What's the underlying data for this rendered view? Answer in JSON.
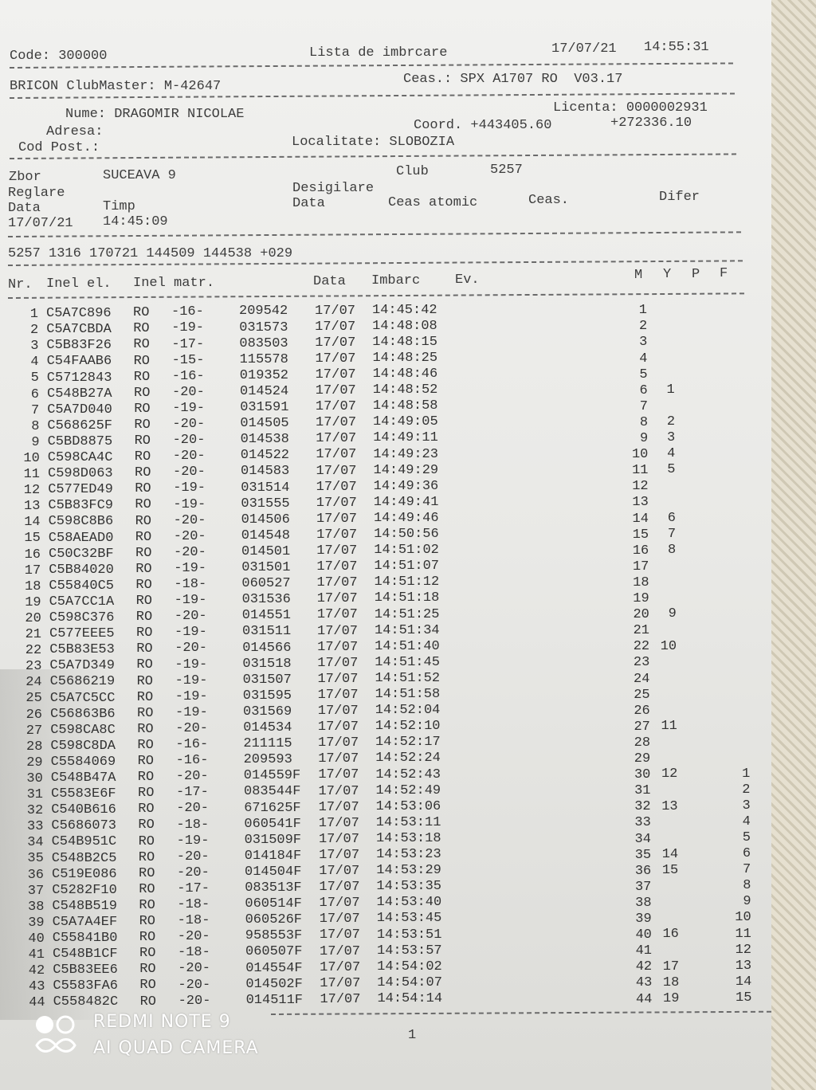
{
  "header": {
    "code": "Code: 300000",
    "title": "Lista de imbrcare",
    "printed_date": "17/07/21",
    "printed_time": "14:55:31",
    "clubmaster": "BRICON ClubMaster: M-42647",
    "ceas": "Ceas.: SPX A1707 RO  V03.17",
    "licenta": "Licenta: 0000002931",
    "nume": "Nume: DRAGOMIR NICOLAE",
    "adresa": "Adresa:",
    "coord_label": "Coord. +443405.60",
    "coord_2": "+272336.10",
    "cod_post": "Cod Post.:",
    "localitate": "Localitate: SLOBOZIA"
  },
  "flight": {
    "zbor_label": "Zbor",
    "zbor": "SUCEAVA 9",
    "club_label": "Club",
    "club": "5257",
    "reglare": "Reglare",
    "desigilare": "Desigilare",
    "data_label": "Data",
    "timp_label": "Timp",
    "data2_label": "Data",
    "ceas_atomic": "Ceas atomic",
    "ceas_label": "Ceas.",
    "difer": "Difer",
    "reglare_date": "17/07/21",
    "reglare_time": "14:45:09",
    "summary": "5257 1316 170721 144509 144538 +029"
  },
  "columns": {
    "nr": "Nr.",
    "inel_el": "Inel el.",
    "inel_matr": "Inel matr.",
    "data": "Data",
    "imbarc": "Imbarc",
    "ev": "Ev.",
    "m": "M",
    "y": "Y",
    "p": "P",
    "f": "F"
  },
  "rows": [
    [
      "1",
      "C5A7C896",
      "RO",
      "-16-",
      "209542",
      "17/07",
      "14:45:42",
      "1",
      "",
      ""
    ],
    [
      "2",
      "C5A7CBDA",
      "RO",
      "-19-",
      "031573",
      "17/07",
      "14:48:08",
      "2",
      "",
      ""
    ],
    [
      "3",
      "C5B83F26",
      "RO",
      "-17-",
      "083503",
      "17/07",
      "14:48:15",
      "3",
      "",
      ""
    ],
    [
      "4",
      "C54FAAB6",
      "RO",
      "-15-",
      "115578",
      "17/07",
      "14:48:25",
      "4",
      "",
      ""
    ],
    [
      "5",
      "C5712843",
      "RO",
      "-16-",
      "019352",
      "17/07",
      "14:48:46",
      "5",
      "",
      ""
    ],
    [
      "6",
      "C548B27A",
      "RO",
      "-20-",
      "014524",
      "17/07",
      "14:48:52",
      "6",
      "1",
      ""
    ],
    [
      "7",
      "C5A7D040",
      "RO",
      "-19-",
      "031591",
      "17/07",
      "14:48:58",
      "7",
      "",
      ""
    ],
    [
      "8",
      "C568625F",
      "RO",
      "-20-",
      "014505",
      "17/07",
      "14:49:05",
      "8",
      "2",
      ""
    ],
    [
      "9",
      "C5BD8875",
      "RO",
      "-20-",
      "014538",
      "17/07",
      "14:49:11",
      "9",
      "3",
      ""
    ],
    [
      "10",
      "C598CA4C",
      "RO",
      "-20-",
      "014522",
      "17/07",
      "14:49:23",
      "10",
      "4",
      ""
    ],
    [
      "11",
      "C598D063",
      "RO",
      "-20-",
      "014583",
      "17/07",
      "14:49:29",
      "11",
      "5",
      ""
    ],
    [
      "12",
      "C577ED49",
      "RO",
      "-19-",
      "031514",
      "17/07",
      "14:49:36",
      "12",
      "",
      ""
    ],
    [
      "13",
      "C5B83FC9",
      "RO",
      "-19-",
      "031555",
      "17/07",
      "14:49:41",
      "13",
      "",
      ""
    ],
    [
      "14",
      "C598C8B6",
      "RO",
      "-20-",
      "014506",
      "17/07",
      "14:49:46",
      "14",
      "6",
      ""
    ],
    [
      "15",
      "C58AEAD0",
      "RO",
      "-20-",
      "014548",
      "17/07",
      "14:50:56",
      "15",
      "7",
      ""
    ],
    [
      "16",
      "C50C32BF",
      "RO",
      "-20-",
      "014501",
      "17/07",
      "14:51:02",
      "16",
      "8",
      ""
    ],
    [
      "17",
      "C5B84020",
      "RO",
      "-19-",
      "031501",
      "17/07",
      "14:51:07",
      "17",
      "",
      ""
    ],
    [
      "18",
      "C55840C5",
      "RO",
      "-18-",
      "060527",
      "17/07",
      "14:51:12",
      "18",
      "",
      ""
    ],
    [
      "19",
      "C5A7CC1A",
      "RO",
      "-19-",
      "031536",
      "17/07",
      "14:51:18",
      "19",
      "",
      ""
    ],
    [
      "20",
      "C598C376",
      "RO",
      "-20-",
      "014551",
      "17/07",
      "14:51:25",
      "20",
      "9",
      ""
    ],
    [
      "21",
      "C577EEE5",
      "RO",
      "-19-",
      "031511",
      "17/07",
      "14:51:34",
      "21",
      "",
      ""
    ],
    [
      "22",
      "C5B83E53",
      "RO",
      "-20-",
      "014566",
      "17/07",
      "14:51:40",
      "22",
      "10",
      ""
    ],
    [
      "23",
      "C5A7D349",
      "RO",
      "-19-",
      "031518",
      "17/07",
      "14:51:45",
      "23",
      "",
      ""
    ],
    [
      "24",
      "C5686219",
      "RO",
      "-19-",
      "031507",
      "17/07",
      "14:51:52",
      "24",
      "",
      ""
    ],
    [
      "25",
      "C5A7C5CC",
      "RO",
      "-19-",
      "031595",
      "17/07",
      "14:51:58",
      "25",
      "",
      ""
    ],
    [
      "26",
      "C56863B6",
      "RO",
      "-19-",
      "031569",
      "17/07",
      "14:52:04",
      "26",
      "",
      ""
    ],
    [
      "27",
      "C598CA8C",
      "RO",
      "-20-",
      "014534",
      "17/07",
      "14:52:10",
      "27",
      "11",
      ""
    ],
    [
      "28",
      "C598C8DA",
      "RO",
      "-16-",
      "211115",
      "17/07",
      "14:52:17",
      "28",
      "",
      ""
    ],
    [
      "29",
      "C5584069",
      "RO",
      "-16-",
      "209593",
      "17/07",
      "14:52:24",
      "29",
      "",
      ""
    ],
    [
      "30",
      "C548B47A",
      "RO",
      "-20-",
      "014559F",
      "17/07",
      "14:52:43",
      "30",
      "12",
      "1"
    ],
    [
      "31",
      "C5583E6F",
      "RO",
      "-17-",
      "083544F",
      "17/07",
      "14:52:49",
      "31",
      "",
      "2"
    ],
    [
      "32",
      "C540B616",
      "RO",
      "-20-",
      "671625F",
      "17/07",
      "14:53:06",
      "32",
      "13",
      "3"
    ],
    [
      "33",
      "C5686073",
      "RO",
      "-18-",
      "060541F",
      "17/07",
      "14:53:11",
      "33",
      "",
      "4"
    ],
    [
      "34",
      "C54B951C",
      "RO",
      "-19-",
      "031509F",
      "17/07",
      "14:53:18",
      "34",
      "",
      "5"
    ],
    [
      "35",
      "C548B2C5",
      "RO",
      "-20-",
      "014184F",
      "17/07",
      "14:53:23",
      "35",
      "14",
      "6"
    ],
    [
      "36",
      "C519E086",
      "RO",
      "-20-",
      "014504F",
      "17/07",
      "14:53:29",
      "36",
      "15",
      "7"
    ],
    [
      "37",
      "C5282F10",
      "RO",
      "-17-",
      "083513F",
      "17/07",
      "14:53:35",
      "37",
      "",
      "8"
    ],
    [
      "38",
      "C548B519",
      "RO",
      "-18-",
      "060514F",
      "17/07",
      "14:53:40",
      "38",
      "",
      "9"
    ],
    [
      "39",
      "C5A7A4EF",
      "RO",
      "-18-",
      "060526F",
      "17/07",
      "14:53:45",
      "39",
      "",
      "10"
    ],
    [
      "40",
      "C55841B0",
      "RO",
      "-20-",
      "958553F",
      "17/07",
      "14:53:51",
      "40",
      "16",
      "11"
    ],
    [
      "41",
      "C548B1CF",
      "RO",
      "-18-",
      "060507F",
      "17/07",
      "14:53:57",
      "41",
      "",
      "12"
    ],
    [
      "42",
      "C5B83EE6",
      "RO",
      "-20-",
      "014554F",
      "17/07",
      "14:54:02",
      "42",
      "17",
      "13"
    ],
    [
      "43",
      "C5583FA6",
      "RO",
      "-20-",
      "014502F",
      "17/07",
      "14:54:07",
      "43",
      "18",
      "14"
    ],
    [
      "44",
      "C558482C",
      "RO",
      "-20-",
      "014511F",
      "17/07",
      "14:54:14",
      "44",
      "19",
      "15"
    ]
  ],
  "footer": {
    "page": "1"
  },
  "watermark": {
    "line1": "REDMI NOTE 9",
    "line2": "AI QUAD CAMERA"
  }
}
